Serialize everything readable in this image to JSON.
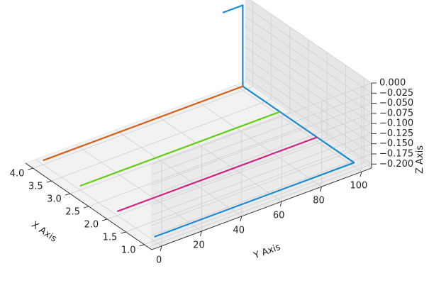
{
  "chart_data": {
    "type": "line",
    "projection": "3d",
    "grid": true,
    "xlabel": "X Axis",
    "ylabel": "Y Axis",
    "zlabel": "Z Axis",
    "xlim": [
      0.8,
      4.2
    ],
    "ylim": [
      -5,
      105
    ],
    "zlim": [
      -0.21,
      0.0
    ],
    "x_ticks": [
      1.0,
      1.5,
      2.0,
      2.5,
      3.0,
      3.5,
      4.0
    ],
    "x_tick_labels": [
      "1.0",
      "1.5",
      "2.0",
      "2.5",
      "3.0",
      "3.5",
      "4.0"
    ],
    "y_ticks": [
      0,
      20,
      40,
      60,
      80,
      100
    ],
    "y_tick_labels": [
      "0",
      "20",
      "40",
      "60",
      "80",
      "100"
    ],
    "z_ticks": [
      0.0,
      -0.025,
      -0.05,
      -0.075,
      -0.1,
      -0.125,
      -0.15,
      -0.175,
      -0.2
    ],
    "z_tick_labels": [
      "0.000",
      "−0.025",
      "−0.050",
      "−0.075",
      "−0.100",
      "−0.125",
      "−0.150",
      "−0.175",
      "−0.200"
    ],
    "series": [
      {
        "color": "#1a8ad4",
        "points": [
          [
            1,
            0,
            -0.2
          ],
          [
            1,
            100,
            -0.2
          ],
          [
            4,
            100,
            -0.2
          ],
          [
            4,
            100,
            0.0
          ],
          [
            4,
            90,
            0.0
          ]
        ]
      },
      {
        "color": "#d4207f",
        "points": [
          [
            2,
            0,
            -0.2
          ],
          [
            2,
            100,
            -0.2
          ]
        ]
      },
      {
        "color": "#5fd010",
        "points": [
          [
            3,
            0,
            -0.2
          ],
          [
            3,
            100,
            -0.2
          ]
        ]
      },
      {
        "color": "#d4601a",
        "points": [
          [
            4,
            0,
            -0.2
          ],
          [
            4,
            100,
            -0.2
          ]
        ]
      }
    ]
  }
}
